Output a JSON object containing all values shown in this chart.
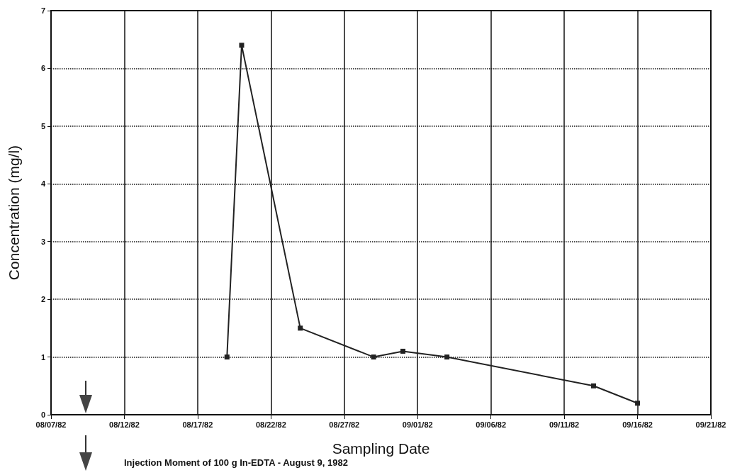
{
  "chart_data": {
    "type": "line",
    "xlabel": "Sampling Date",
    "ylabel": "Concentration (mg/l)",
    "x": [
      "1982-08-19",
      "1982-08-20",
      "1982-08-24",
      "1982-08-29",
      "1982-08-31",
      "1982-09-03",
      "1982-09-13",
      "1982-09-16"
    ],
    "series": [
      {
        "color": "#222222",
        "values": [
          1.0,
          6.4,
          1.5,
          1.0,
          1.1,
          1.0,
          0.5,
          0.2
        ]
      }
    ],
    "xlim": [
      "1982-08-07",
      "1982-09-21"
    ],
    "xticks": [
      {
        "value": "1982-08-07",
        "label": "08/07/82"
      },
      {
        "value": "1982-08-12",
        "label": "08/12/82"
      },
      {
        "value": "1982-08-17",
        "label": "08/17/82"
      },
      {
        "value": "1982-08-22",
        "label": "08/22/82"
      },
      {
        "value": "1982-08-27",
        "label": "08/27/82"
      },
      {
        "value": "1982-09-01",
        "label": "09/01/82"
      },
      {
        "value": "1982-09-06",
        "label": "09/06/82"
      },
      {
        "value": "1982-09-11",
        "label": "09/11/82"
      },
      {
        "value": "1982-09-16",
        "label": "09/16/82"
      },
      {
        "value": "1982-09-21",
        "label": "09/21/82"
      }
    ],
    "ylim": [
      0,
      7
    ],
    "yticks": [
      0,
      1,
      2,
      3,
      4,
      5,
      6,
      7
    ],
    "grid": true,
    "marker": "square",
    "line_style": "solid",
    "annotations": [
      "Injection Moment of 100 g In-EDTA - August 9, 1982"
    ]
  }
}
